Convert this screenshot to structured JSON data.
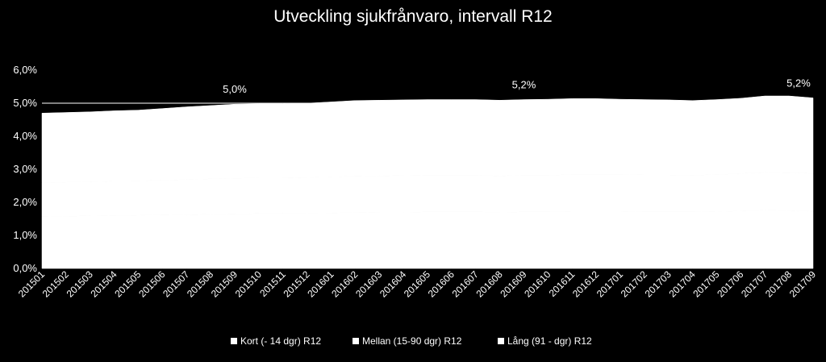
{
  "chart_data": {
    "type": "area",
    "stacked": true,
    "title": "Utveckling sjukfrånvaro, intervall R12",
    "xlabel": "",
    "ylabel": "",
    "ylim": [
      0,
      0.06
    ],
    "y_ticks": [
      "0,0%",
      "1,0%",
      "2,0%",
      "3,0%",
      "4,0%",
      "5,0%",
      "6,0%"
    ],
    "grid": false,
    "legend_position": "bottom",
    "categories": [
      "201501",
      "201502",
      "201503",
      "201504",
      "201505",
      "201506",
      "201507",
      "201508",
      "201509",
      "201510",
      "201511",
      "201512",
      "201601",
      "201602",
      "201603",
      "201604",
      "201605",
      "201606",
      "201607",
      "201608",
      "201609",
      "201610",
      "201611",
      "201612",
      "201701",
      "201702",
      "201703",
      "201704",
      "201705",
      "201706",
      "201707",
      "201708",
      "201709"
    ],
    "series": [
      {
        "name": "Kort (- 14 dgr) R12",
        "color": "#ffffff",
        "values": [
          0.0157,
          0.0158,
          0.0159,
          0.016,
          0.0161,
          0.0162,
          0.0163,
          0.0164,
          0.0165,
          0.0166,
          0.0166,
          0.0167,
          0.0168,
          0.0169,
          0.017,
          0.017,
          0.0171,
          0.0171,
          0.0171,
          0.017,
          0.0171,
          0.0171,
          0.0172,
          0.0172,
          0.0172,
          0.0171,
          0.0171,
          0.0171,
          0.0172,
          0.0174,
          0.0176,
          0.0175,
          0.0173
        ]
      },
      {
        "name": "Mellan (15-90 dgr) R12",
        "color": "#ffffff",
        "values": [
          0.0102,
          0.0103,
          0.0103,
          0.0104,
          0.0104,
          0.0105,
          0.0106,
          0.0107,
          0.0108,
          0.0108,
          0.0108,
          0.0108,
          0.0109,
          0.011,
          0.011,
          0.0111,
          0.0111,
          0.0111,
          0.0111,
          0.011,
          0.0111,
          0.0111,
          0.0112,
          0.0112,
          0.0112,
          0.0112,
          0.0112,
          0.0111,
          0.0112,
          0.0113,
          0.0115,
          0.0115,
          0.0114
        ]
      },
      {
        "name": "Lång (91 - dgr) R12",
        "color": "#ffffff",
        "values": [
          0.0211,
          0.0211,
          0.0212,
          0.0213,
          0.0214,
          0.0217,
          0.022,
          0.0222,
          0.0224,
          0.0224,
          0.0224,
          0.0225,
          0.0227,
          0.0229,
          0.0229,
          0.0229,
          0.0229,
          0.0229,
          0.0229,
          0.0229,
          0.0229,
          0.023,
          0.023,
          0.023,
          0.0228,
          0.0228,
          0.0227,
          0.0226,
          0.0227,
          0.0228,
          0.0231,
          0.0232,
          0.0229
        ]
      }
    ],
    "annotations": [
      {
        "category": "201509",
        "text": "5,0%"
      },
      {
        "category": "201609",
        "text": "5,2%"
      },
      {
        "category": "201709",
        "text": "5,2%"
      }
    ]
  }
}
